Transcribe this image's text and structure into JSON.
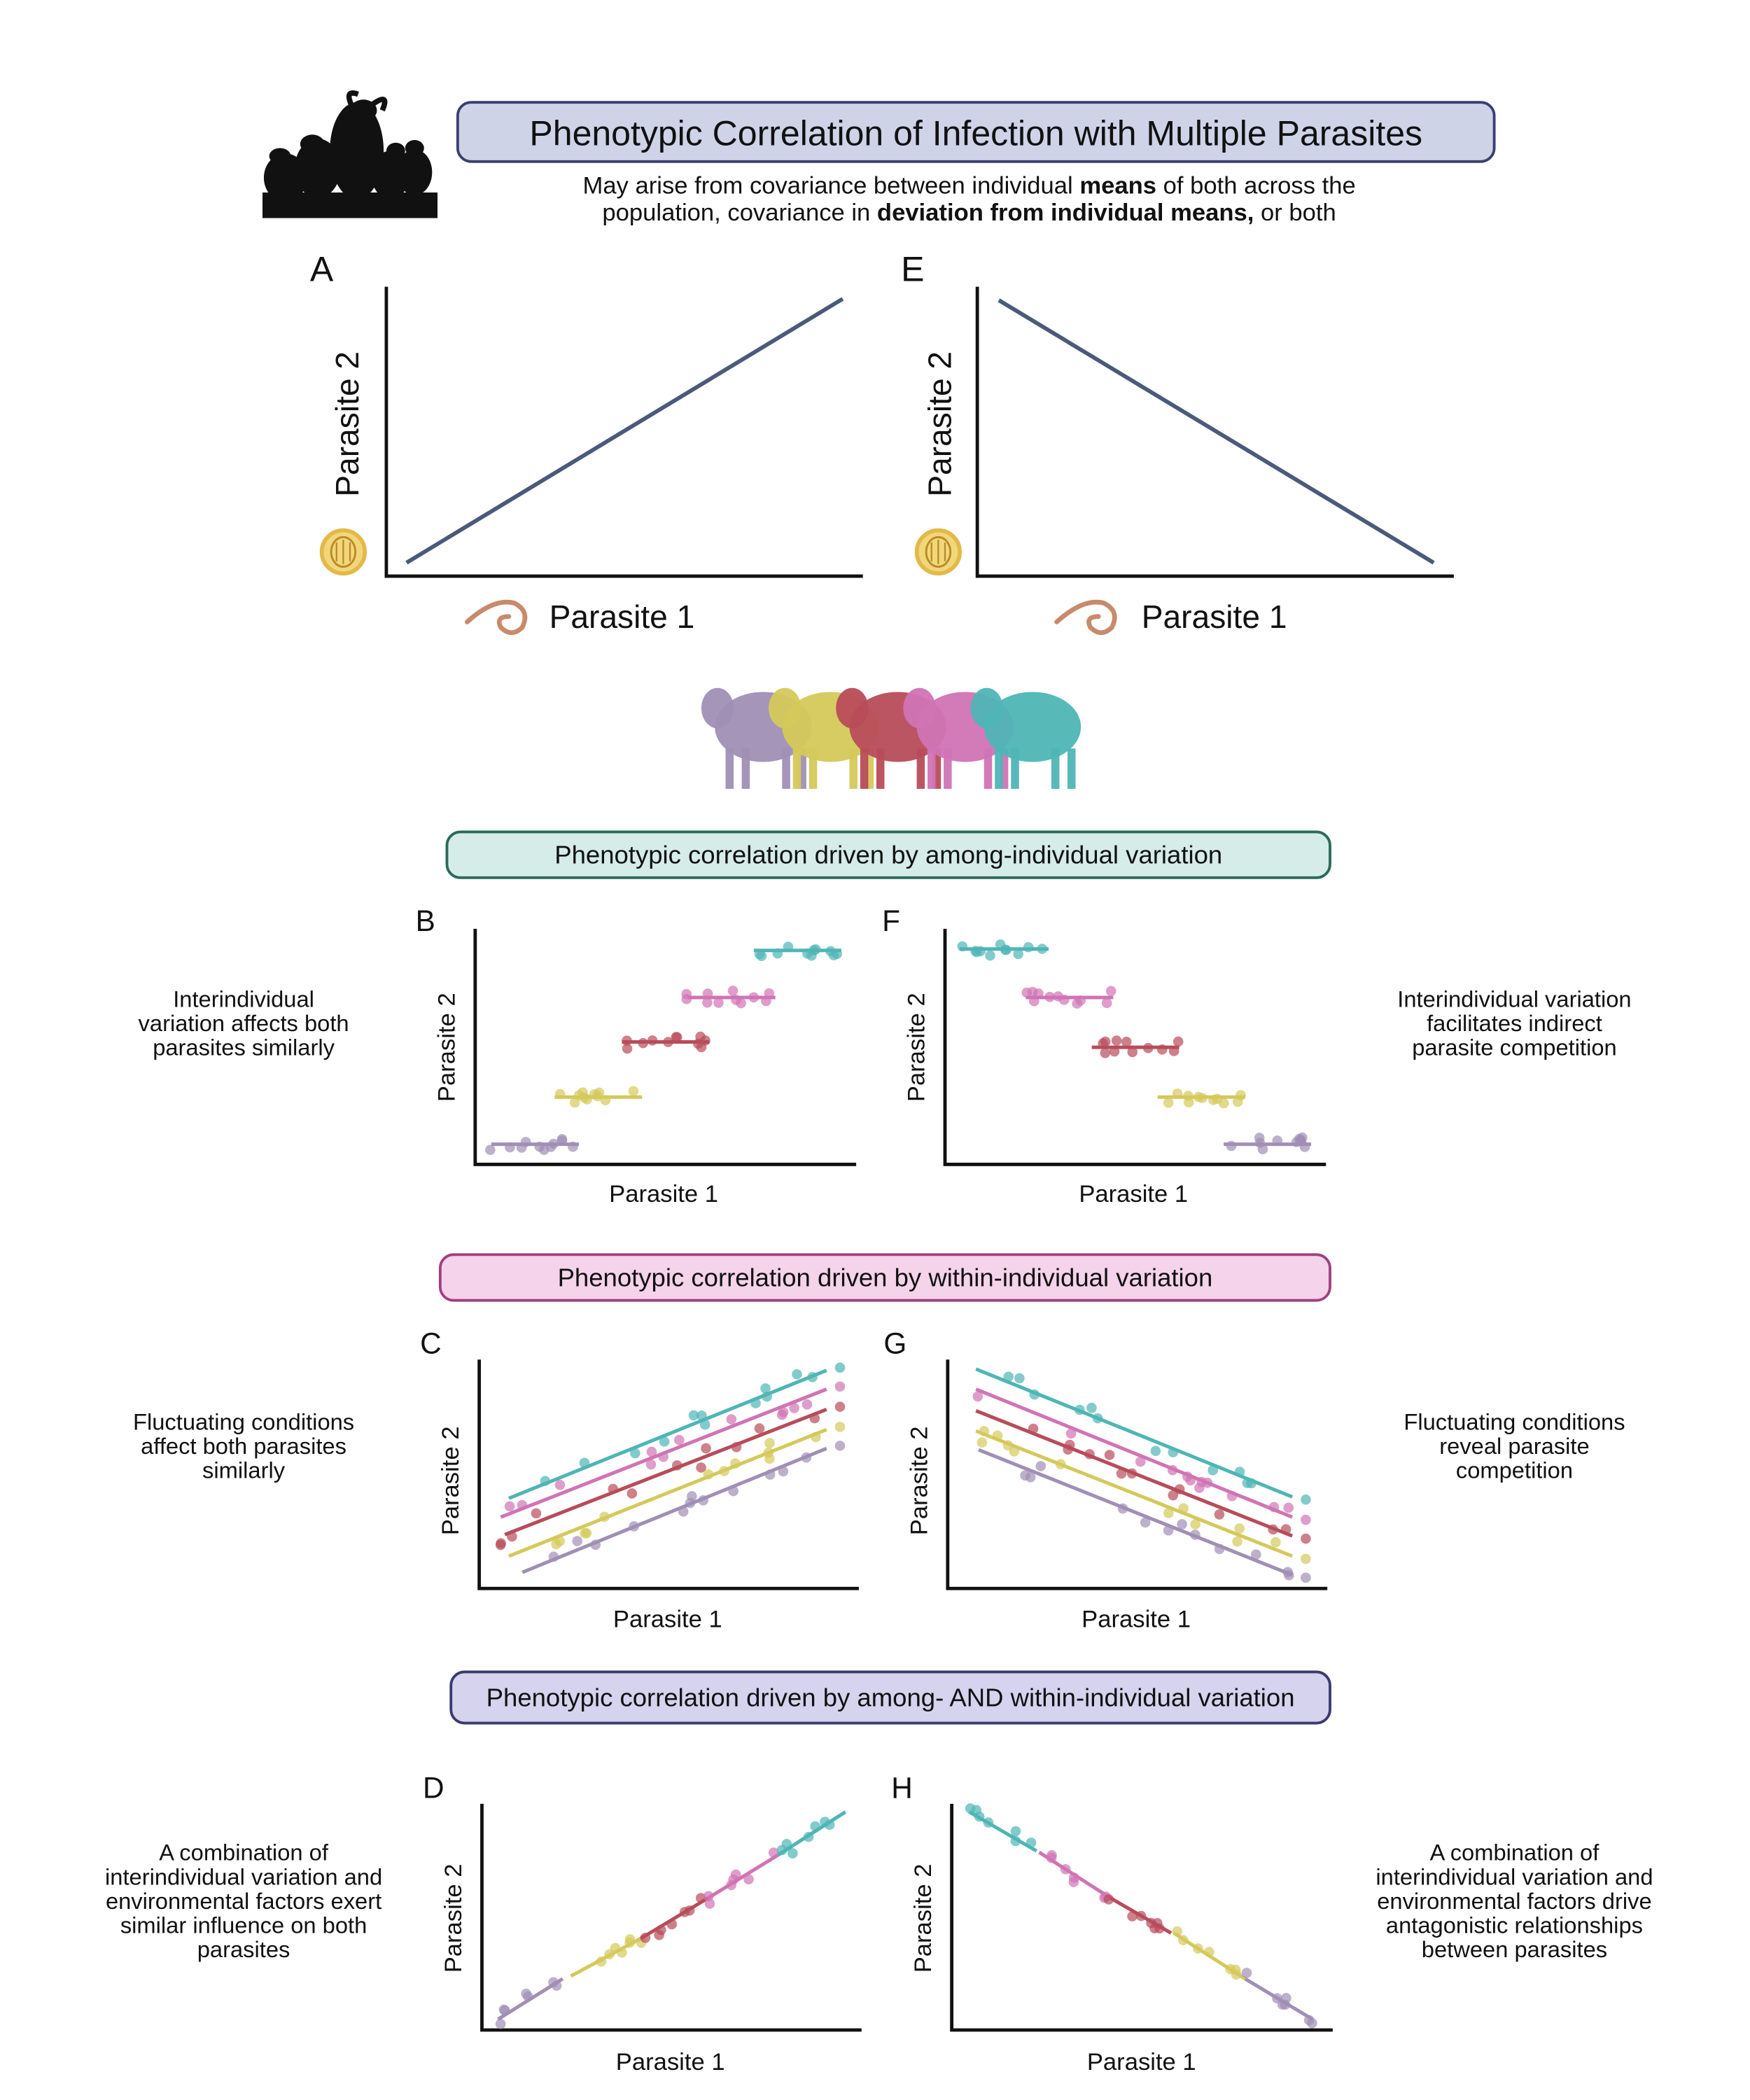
{
  "header": {
    "title": "Phenotypic Correlation of Infection with Multiple Parasites",
    "subtitle": [
      [
        {
          "text": "May arise from covariance between individual "
        },
        {
          "text": "means",
          "bold": true
        },
        {
          "text": " of both across the"
        }
      ],
      [
        {
          "text": "population,  covariance in "
        },
        {
          "text": "deviation from individual means,",
          "bold": true
        },
        {
          "text": " or both"
        }
      ]
    ]
  },
  "top_panels": [
    {
      "letter": "A",
      "x_label": "Parasite 1",
      "y_label": "Parasite 2"
    },
    {
      "letter": "E",
      "x_label": "Parasite 1",
      "y_label": "Parasite 2"
    }
  ],
  "sections": [
    {
      "heading": "Phenotypic correlation driven by among-individual variation",
      "left_note": [
        "Interindividual",
        "variation affects both",
        "parasites similarly"
      ],
      "right_note": [
        "Interindividual variation",
        "facilitates indirect",
        "parasite competition"
      ],
      "panels": [
        {
          "letter": "B",
          "x_label": "Parasite 1",
          "y_label": "Parasite 2"
        },
        {
          "letter": "F",
          "x_label": "Parasite 1",
          "y_label": "Parasite 2"
        }
      ]
    },
    {
      "heading": "Phenotypic correlation driven by within-individual variation",
      "left_note": [
        "Fluctuating conditions",
        "affect both parasites",
        "similarly"
      ],
      "right_note": [
        "Fluctuating conditions",
        "reveal parasite",
        "competition"
      ],
      "panels": [
        {
          "letter": "C",
          "x_label": "Parasite 1",
          "y_label": "Parasite 2"
        },
        {
          "letter": "G",
          "x_label": "Parasite 1",
          "y_label": "Parasite 2"
        }
      ]
    },
    {
      "heading": "Phenotypic correlation driven by among- AND within-individual variation",
      "left_note": [
        "A combination of",
        "interindividual variation and",
        "environmental factors exert",
        "similar influence on both",
        "parasites"
      ],
      "right_note": [
        "A combination of",
        "interindividual variation and",
        "environmental factors drive",
        "antagonistic relationships",
        "between parasites"
      ],
      "panels": [
        {
          "letter": "D",
          "x_label": "Parasite 1",
          "y_label": "Parasite 2"
        },
        {
          "letter": "H",
          "x_label": "Parasite 1",
          "y_label": "Parasite 2"
        }
      ]
    }
  ]
}
